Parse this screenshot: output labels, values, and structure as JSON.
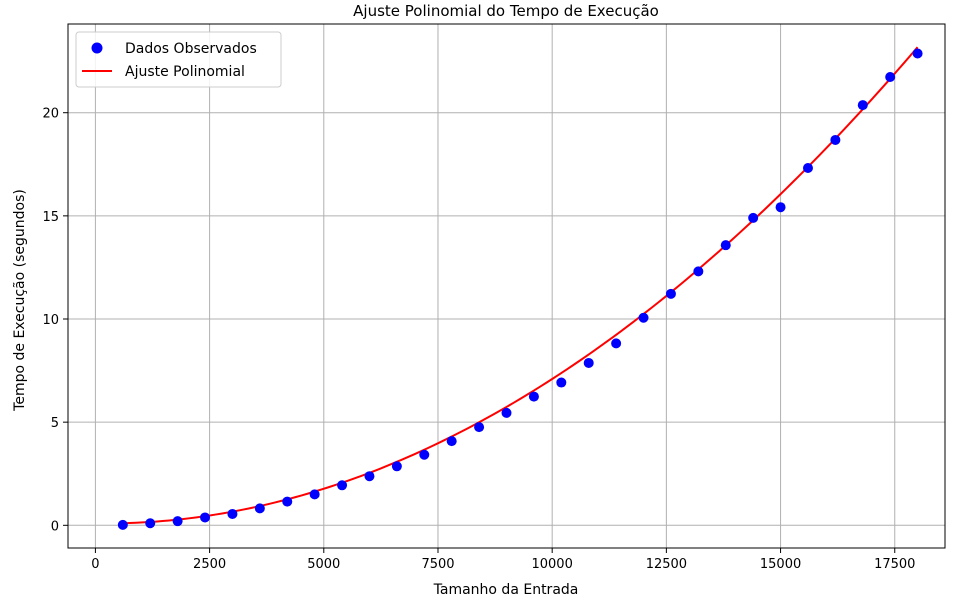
{
  "chart_data": {
    "type": "scatter",
    "title": "Ajuste Polinomial do Tempo de Execução",
    "xlabel": "Tamanho da Entrada",
    "ylabel": "Tempo de Execução (segundos)",
    "xlim": [
      -600,
      18600
    ],
    "ylim": [
      -1.1,
      24.3
    ],
    "x_ticks": [
      0,
      2500,
      5000,
      7500,
      10000,
      12500,
      15000,
      17500
    ],
    "y_ticks": [
      0,
      5,
      10,
      15,
      20
    ],
    "grid": true,
    "legend_position": "top-left",
    "series": [
      {
        "name": "Dados Observados",
        "kind": "scatter",
        "color": "#0000ff",
        "x": [
          600,
          1200,
          1800,
          2400,
          3000,
          3600,
          4200,
          4800,
          5400,
          6000,
          6600,
          7200,
          7800,
          8400,
          9000,
          9600,
          10200,
          10800,
          11400,
          12000,
          12600,
          13200,
          13800,
          14400,
          15000,
          15600,
          16200,
          16800,
          17400,
          18000
        ],
        "y": [
          0.02,
          0.1,
          0.2,
          0.38,
          0.55,
          0.82,
          1.15,
          1.5,
          1.94,
          2.38,
          2.86,
          3.42,
          4.08,
          4.76,
          5.45,
          6.24,
          6.92,
          7.87,
          8.82,
          10.06,
          11.22,
          12.31,
          13.58,
          14.9,
          15.42,
          17.32,
          18.68,
          20.37,
          21.73,
          22.87
        ]
      },
      {
        "name": "Ajuste Polinomial",
        "kind": "line",
        "color": "#ff0000",
        "coefficients_quadratic": [
          0.0903,
          -2.78e-05,
          7.28e-08
        ]
      }
    ]
  }
}
